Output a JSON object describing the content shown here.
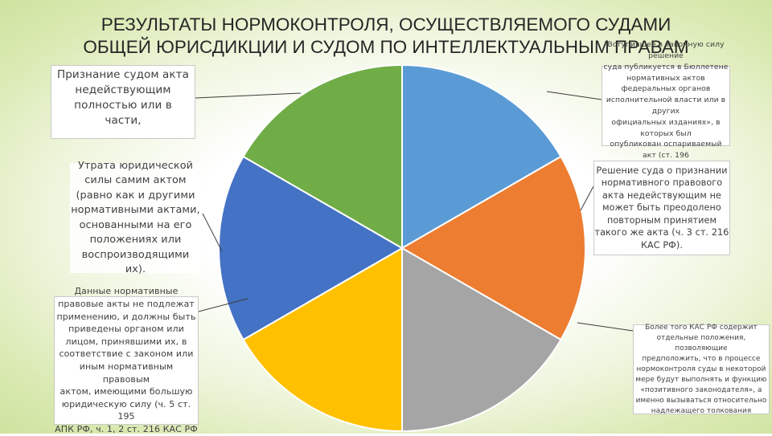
{
  "title": {
    "line1": "РЕЗУЛЬТАТЫ НОРМОКОНТРОЛЯ, ОСУЩЕСТВЛЯЕМОГО СУДАМИ",
    "line2": "ОБЩЕЙ ЮРИСДИКЦИИ И СУДОМ ПО ИНТЕЛЛЕКТУАЛЬНЫМ ПРАВАМ"
  },
  "chart_data": {
    "type": "pie",
    "slices": [
      {
        "value": 1,
        "color": "#5b9bd5"
      },
      {
        "value": 1,
        "color": "#ed7d31"
      },
      {
        "value": 1,
        "color": "#a5a5a5"
      },
      {
        "value": 1,
        "color": "#ffc000"
      },
      {
        "value": 1,
        "color": "#4472c4"
      },
      {
        "value": 1,
        "color": "#70ad47"
      }
    ]
  },
  "boxes": {
    "recognition": [
      "Признание судом акта",
      "недействующим",
      "полностью или в",
      "части,"
    ],
    "loss": [
      "Утрата юридической",
      "силы самим актом",
      "(равно как и другими",
      "нормативными актами,",
      "основанными на его",
      "положениях или",
      "воспроизводящими их)."
    ],
    "bring": [
      "Данные нормативные",
      "правовые акты не подлежат",
      "применению, и должны быть",
      "приведены органом или",
      "лицом, принявшими их, в",
      "соответствие с законом или",
      "иным нормативным правовым",
      "актом, имеющими большую",
      "юридическую силу (ч. 5 ст. 195",
      "АПК РФ, ч. 1, 2 ст. 216 КАС РФ"
    ],
    "published": [
      "Вступившее в законную силу решение",
      "суда публикуется в Бюллетене",
      "нормативных актов федеральных органов",
      "исполнительной власти или в других",
      "официальных изданиях», в которых был",
      "опубликован оспариваемый акт (ст. 196",
      "АПК РФ)."
    ],
    "decision": [
      "Решение суда о признании",
      "нормативного правового",
      "акта недействующим не",
      "может быть преодолено",
      "повторным принятием",
      "такого же акта (ч. 3 ст. 216",
      "КАС РФ)."
    ],
    "kas": [
      "Более того КАС РФ содержит",
      "отдельные положения, позволяющие",
      "предположить, что в процессе",
      "нормоконтроля суды в некоторой",
      "мере будут выполнять и функцию",
      "«позитивного законодателя», а",
      "именно вызываться относительно",
      "надлежащего толкования"
    ]
  }
}
